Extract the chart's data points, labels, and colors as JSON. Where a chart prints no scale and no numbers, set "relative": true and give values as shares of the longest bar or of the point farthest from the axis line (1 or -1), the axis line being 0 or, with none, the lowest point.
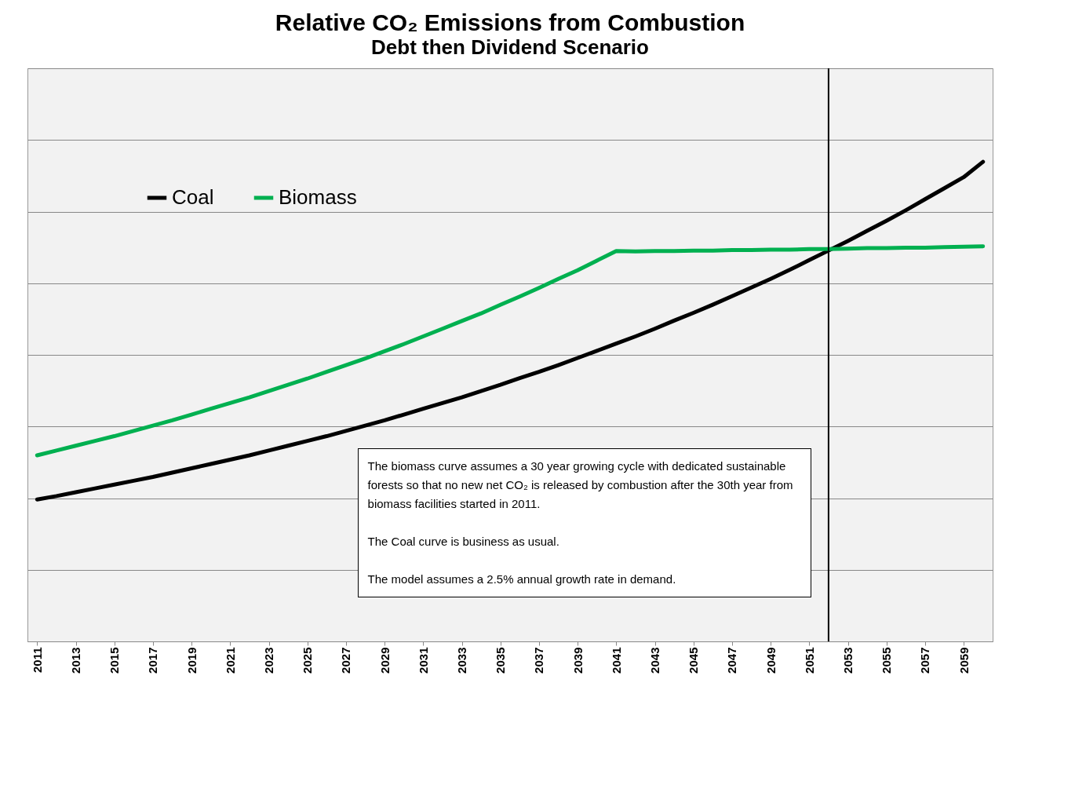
{
  "chart_data": {
    "type": "line",
    "title": "Relative CO₂ Emissions from Combustion",
    "subtitle": "Debt then Dividend Scenario",
    "x": [
      2011,
      2012,
      2013,
      2014,
      2015,
      2016,
      2017,
      2018,
      2019,
      2020,
      2021,
      2022,
      2023,
      2024,
      2025,
      2026,
      2027,
      2028,
      2029,
      2030,
      2031,
      2032,
      2033,
      2034,
      2035,
      2036,
      2037,
      2038,
      2039,
      2040,
      2041,
      2042,
      2043,
      2044,
      2045,
      2046,
      2047,
      2048,
      2049,
      2050,
      2051,
      2052,
      2053,
      2054,
      2055,
      2056,
      2057,
      2058,
      2059,
      2060
    ],
    "series": [
      {
        "name": "Coal",
        "color": "#000000",
        "values": [
          0.296,
          0.303,
          0.311,
          0.319,
          0.327,
          0.335,
          0.343,
          0.352,
          0.361,
          0.37,
          0.379,
          0.388,
          0.398,
          0.408,
          0.418,
          0.428,
          0.439,
          0.45,
          0.461,
          0.473,
          0.485,
          0.497,
          0.509,
          0.522,
          0.535,
          0.549,
          0.562,
          0.576,
          0.591,
          0.606,
          0.621,
          0.636,
          0.652,
          0.669,
          0.685,
          0.702,
          0.72,
          0.738,
          0.756,
          0.775,
          0.795,
          0.815,
          0.835,
          0.856,
          0.877,
          0.899,
          0.922,
          0.945,
          0.968,
          1
        ]
      },
      {
        "name": "Biomass",
        "color": "#00b050",
        "values": [
          0.388,
          0.398,
          0.408,
          0.418,
          0.428,
          0.439,
          0.45,
          0.461,
          0.473,
          0.485,
          0.497,
          0.509,
          0.522,
          0.535,
          0.548,
          0.562,
          0.576,
          0.59,
          0.605,
          0.62,
          0.636,
          0.652,
          0.668,
          0.684,
          0.702,
          0.719,
          0.737,
          0.756,
          0.774,
          0.794,
          0.814,
          0.813,
          0.814,
          0.814,
          0.815,
          0.815,
          0.816,
          0.816,
          0.817,
          0.817,
          0.818,
          0.818,
          0.819,
          0.82,
          0.82,
          0.821,
          0.821,
          0.822,
          0.823,
          0.824
        ]
      }
    ],
    "relative": true,
    "xlim": [
      2010.5,
      2060.5
    ],
    "xticks": [
      2011,
      2013,
      2015,
      2017,
      2019,
      2021,
      2023,
      2025,
      2027,
      2029,
      2031,
      2033,
      2035,
      2037,
      2039,
      2041,
      2043,
      2045,
      2047,
      2049,
      2051,
      2053,
      2055,
      2057,
      2059
    ],
    "ref_lines": [
      {
        "axis": "x",
        "value": 2052,
        "color": "#000000"
      }
    ],
    "annotations": [
      "The biomass curve assumes a 30 year growing cycle with dedicated sustainable forests so that no new net CO₂ is released by combustion after the 30th year from biomass facilities started in 2011.",
      "The Coal curve is business as usual.",
      "The model assumes a 2.5% annual growth rate in demand."
    ],
    "grid": "y",
    "legend": "top left",
    "line_style": "solid",
    "marker": "none"
  }
}
